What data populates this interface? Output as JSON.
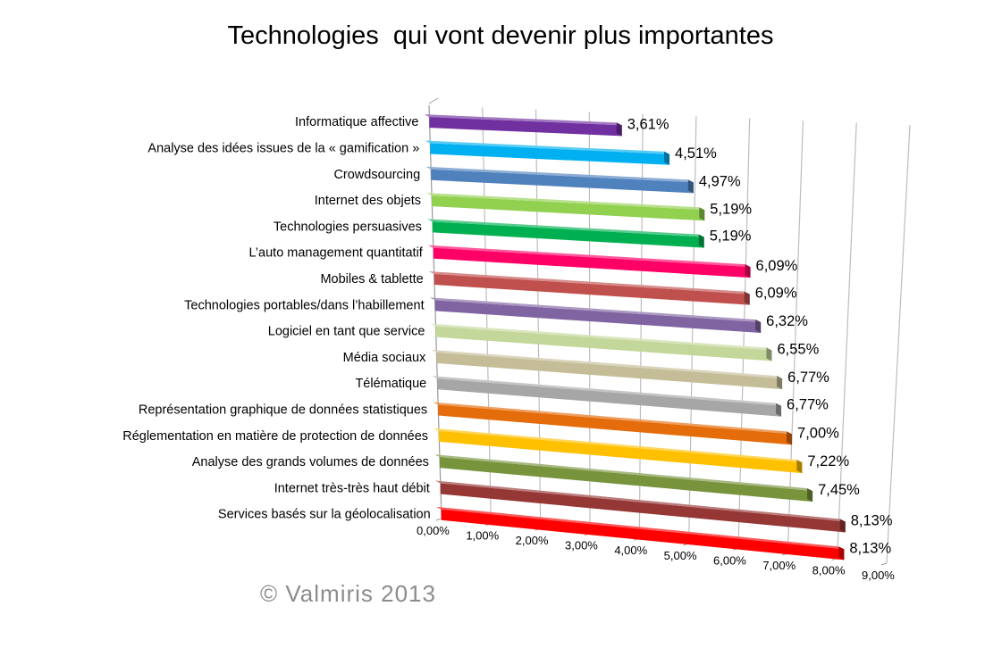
{
  "chart_data": {
    "type": "bar",
    "orientation": "horizontal",
    "title": "Technologies  qui vont devenir plus importantes",
    "categories": [
      "Informatique affective",
      "Analyse des idées issues de la « gamification »",
      "Crowdsourcing",
      "Internet des objets",
      "Technologies persuasives",
      "L’auto management quantitatif",
      "Mobiles & tablette",
      "Technologies portables/dans l’habillement",
      "Logiciel en tant que service",
      "Média sociaux",
      "Télématique",
      "Représentation graphique de données statistiques",
      "Réglementation en matière de protection de données",
      "Analyse des grands volumes de données",
      "Internet très-très haut débit",
      "Services basés sur la géolocalisation"
    ],
    "values": [
      3.61,
      4.51,
      4.97,
      5.19,
      5.19,
      6.09,
      6.09,
      6.32,
      6.55,
      6.77,
      6.77,
      7.0,
      7.22,
      7.45,
      8.13,
      8.13
    ],
    "value_labels": [
      "3,61%",
      "4,51%",
      "4,97%",
      "5,19%",
      "5,19%",
      "6,09%",
      "6,09%",
      "6,32%",
      "6,55%",
      "6,77%",
      "6,77%",
      "7,00%",
      "7,22%",
      "7,45%",
      "8,13%",
      "8,13%"
    ],
    "colors": [
      "#7030a0",
      "#00b0f0",
      "#4f81bd",
      "#92d050",
      "#00b050",
      "#ff0066",
      "#c0504d",
      "#8064a2",
      "#c4d79b",
      "#c4bd97",
      "#a6a6a6",
      "#e46c0a",
      "#ffc000",
      "#77933c",
      "#953735",
      "#ff0000"
    ],
    "x_ticks": [
      "0,00%",
      "1,00%",
      "2,00%",
      "3,00%",
      "4,00%",
      "5,00%",
      "6,00%",
      "7,00%",
      "8,00%",
      "9,00%"
    ],
    "xlim": [
      0,
      9
    ],
    "gridlines": true,
    "style": "3d"
  },
  "copyright": "© Valmiris 2013"
}
